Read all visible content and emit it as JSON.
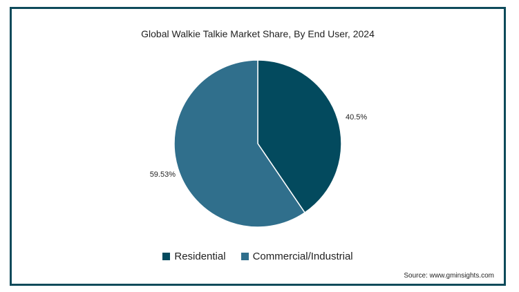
{
  "chart_data": {
    "type": "pie",
    "title": "Global Walkie Talkie Market Share, By End User, 2024",
    "slices": [
      {
        "name": "Residential",
        "value": 40.5,
        "label": "40.5%",
        "color": "#034a5e"
      },
      {
        "name": "Commercial/Industrial",
        "value": 59.53,
        "label": "59.53%",
        "color": "#306f8c"
      }
    ],
    "legend_position": "bottom",
    "source": "Source: www.gminsights.com"
  }
}
